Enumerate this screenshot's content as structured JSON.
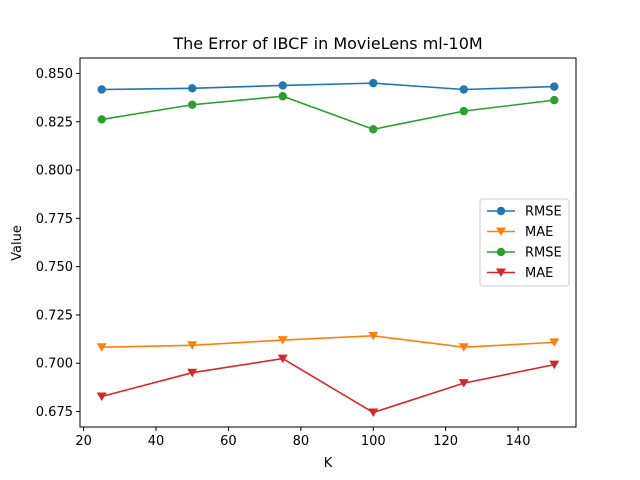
{
  "chart_data": {
    "type": "line",
    "title": "The Error of IBCF in MovieLens ml-10M",
    "xlabel": "K",
    "ylabel": "Value",
    "x": [
      25,
      50,
      75,
      100,
      125,
      150
    ],
    "xlim": [
      19,
      156
    ],
    "ylim": [
      0.667,
      0.858
    ],
    "xticks": [
      20,
      40,
      60,
      80,
      100,
      120,
      140
    ],
    "yticks": [
      0.675,
      0.7,
      0.725,
      0.75,
      0.775,
      0.8,
      0.825,
      0.85
    ],
    "yticks_labels": [
      "0.675",
      "0.700",
      "0.725",
      "0.750",
      "0.775",
      "0.800",
      "0.825",
      "0.850"
    ],
    "legend_position": "center-right",
    "grid": false,
    "series": [
      {
        "name": "RMSE",
        "color": "#1f77b4",
        "marker": "circle",
        "values": [
          0.8417,
          0.8423,
          0.8438,
          0.845,
          0.8417,
          0.8432
        ]
      },
      {
        "name": "MAE",
        "color": "#ff7f0e",
        "marker": "triangle-down",
        "values": [
          0.7083,
          0.7093,
          0.712,
          0.7142,
          0.7083,
          0.7108
        ]
      },
      {
        "name": "RMSE",
        "color": "#2ca02c",
        "marker": "circle",
        "values": [
          0.8262,
          0.8338,
          0.8382,
          0.8211,
          0.8305,
          0.8362
        ]
      },
      {
        "name": "MAE",
        "color": "#d62728",
        "marker": "triangle-down",
        "values": [
          0.6828,
          0.6951,
          0.7024,
          0.6745,
          0.6897,
          0.6993
        ]
      }
    ]
  }
}
